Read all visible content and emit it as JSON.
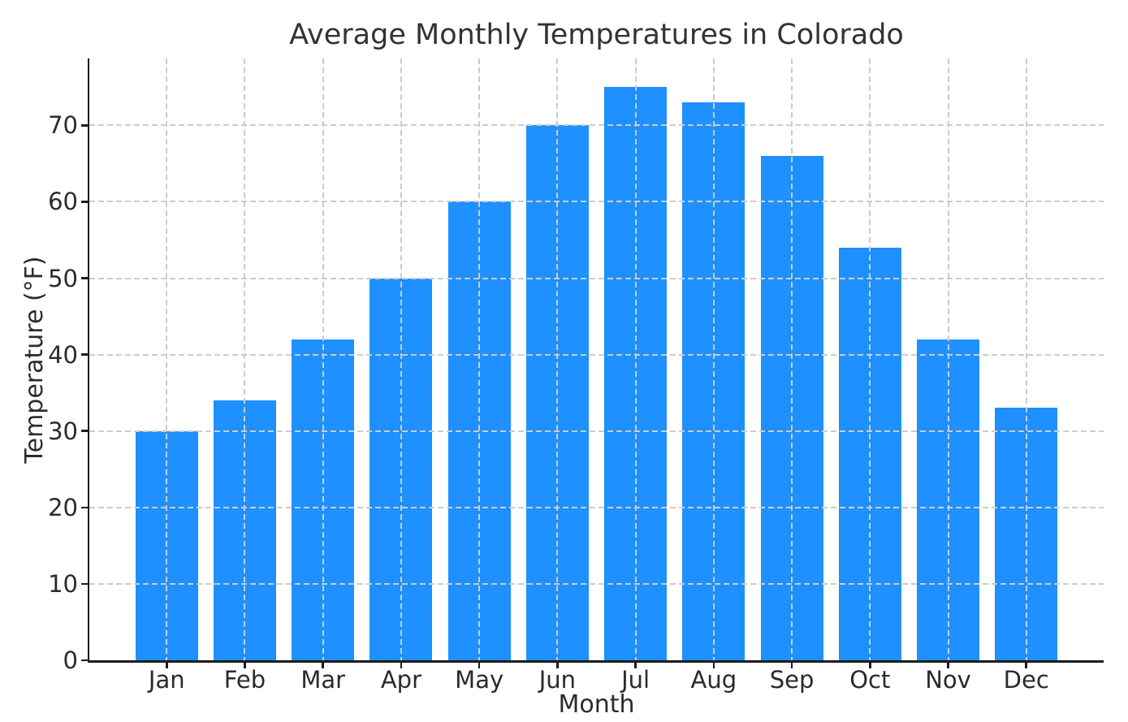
{
  "figure": {
    "background": "#ffffff"
  },
  "chart_data": {
    "type": "bar",
    "title": "Average Monthly Temperatures in Colorado",
    "xlabel": "Month",
    "ylabel": "Temperature (°F)",
    "categories": [
      "Jan",
      "Feb",
      "Mar",
      "Apr",
      "May",
      "Jun",
      "Jul",
      "Aug",
      "Sep",
      "Oct",
      "Nov",
      "Dec"
    ],
    "values": [
      30,
      34,
      42,
      50,
      60,
      70,
      75,
      73,
      66,
      54,
      42,
      33
    ],
    "yticks": [
      0,
      10,
      20,
      30,
      40,
      50,
      60,
      70
    ],
    "ylim": [
      0,
      78.75
    ],
    "bar_width_fraction": 0.8,
    "grid": true,
    "grid_line_style": "dashed",
    "grid_above_bars": true,
    "legend_position": "none",
    "colors": {
      "bar": "#1E90FF",
      "grid": "#cccccc",
      "spine": "#1c1c1c",
      "tick_label": "#2b2b2b",
      "title": "#333333"
    }
  }
}
